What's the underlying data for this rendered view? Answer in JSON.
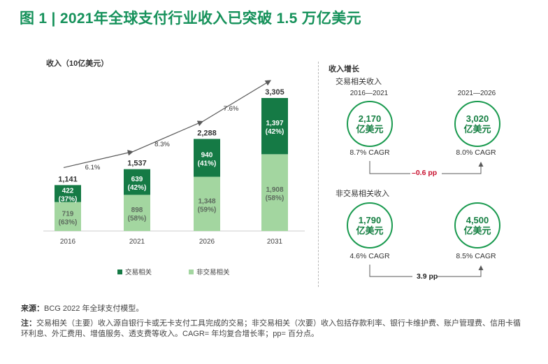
{
  "figure_title": "图 1 | 2021年全球支付行业收入已突破 1.5 万亿美元",
  "colors": {
    "brand": "#15915a",
    "transaction": "#157a45",
    "non_transaction": "#a3d6a0",
    "negative": "#c8102e",
    "arrow": "#5a5a5a"
  },
  "chart_data": {
    "type": "bar",
    "title": "收入（10亿美元）",
    "ylabel": "收入（10亿美元）",
    "categories": [
      "2016",
      "2021",
      "2026",
      "2031"
    ],
    "series": [
      {
        "name": "非交易相关",
        "values": [
          719,
          898,
          1348,
          1908
        ],
        "shares": [
          "(63%)",
          "(58%)",
          "(59%)",
          "(58%)"
        ],
        "labels": [
          "719",
          "898",
          "1,348",
          "1,908"
        ]
      },
      {
        "name": "交易相关",
        "values": [
          422,
          639,
          940,
          1397
        ],
        "shares": [
          "(37%)",
          "(42%)",
          "(41%)",
          "(42%)"
        ],
        "labels": [
          "422",
          "639",
          "940",
          "1,397"
        ]
      }
    ],
    "totals": [
      1141,
      1537,
      2288,
      3305
    ],
    "total_labels": [
      "1,141",
      "1,537",
      "2,288",
      "3,305"
    ],
    "growth_rates": [
      "6.1%",
      "8.3%",
      "7.6%"
    ],
    "legend": [
      "交易相关",
      "非交易相关"
    ],
    "ylim": [
      0,
      3305
    ]
  },
  "growth_panel": {
    "title": "收入增长",
    "transaction": {
      "title": "交易相关收入",
      "left_period": "2016—2021",
      "right_period": "2021—2026",
      "left_value": "2,170",
      "right_value": "3,020",
      "unit": "亿美元",
      "left_cagr": "8.7% CAGR",
      "right_cagr": "8.0% CAGR",
      "difference": "–0.6 pp"
    },
    "non_transaction": {
      "title": "非交易相关收入",
      "left_value": "1,790",
      "right_value": "4,500",
      "unit": "亿美元",
      "left_cagr": "4.6% CAGR",
      "right_cagr": "8.5% CAGR",
      "difference": "3.9 pp"
    }
  },
  "notes": {
    "source_label": "来源：",
    "source_text": "BCG 2022 年全球支付模型。",
    "note_label": "注：",
    "note_text": "交易相关（主要）收入源自银行卡或无卡支付工具完成的交易；非交易相关（次要）收入包括存款利率、银行卡维护费、账户管理费、信用卡循环利息、外汇费用、增值服务、透支费等收入。CAGR= 年均复合增长率；pp= 百分点。"
  }
}
